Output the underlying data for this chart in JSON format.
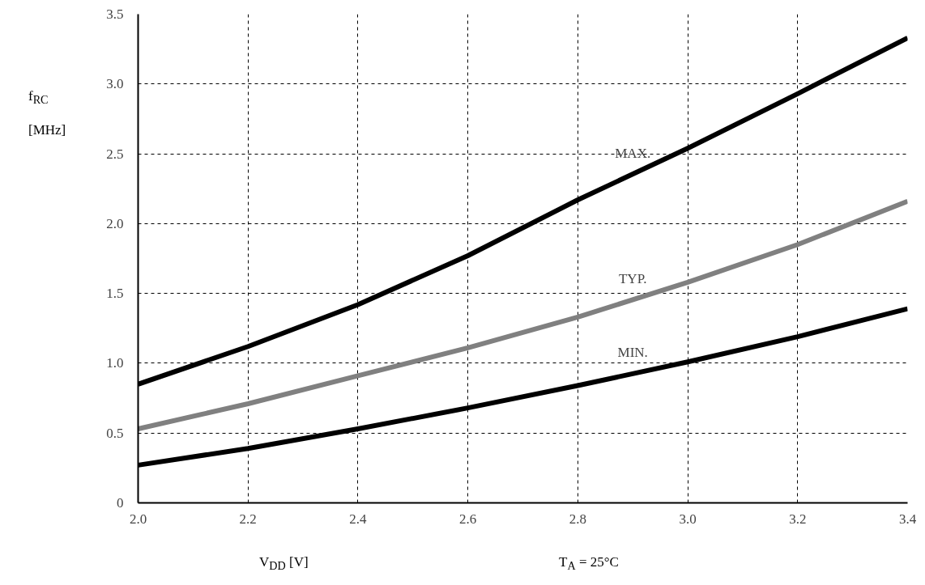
{
  "chart_data": {
    "type": "line",
    "xlabel": "V$_{DD}$ [V]",
    "ylabel": "f$_{RC}$ [MHz]",
    "x": [
      2.0,
      2.2,
      2.4,
      2.6,
      2.8,
      3.0,
      3.2,
      3.4
    ],
    "series": [
      {
        "name": "MAX.",
        "color": "#000000",
        "values": [
          0.85,
          1.12,
          1.42,
          1.77,
          2.17,
          2.54,
          2.93,
          3.33
        ]
      },
      {
        "name": "TYP.",
        "color": "#808080",
        "values": [
          0.53,
          0.71,
          0.91,
          1.11,
          1.33,
          1.58,
          1.85,
          2.16
        ]
      },
      {
        "name": "MIN.",
        "color": "#000000",
        "values": [
          0.27,
          0.39,
          0.53,
          0.68,
          0.84,
          1.01,
          1.19,
          1.39
        ]
      }
    ],
    "annotations": [
      "T$_{A}$ = 25°C"
    ],
    "xlim": [
      2.0,
      3.4
    ],
    "ylim": [
      0,
      3.5
    ],
    "xticks": [
      {
        "value": 2.0,
        "label": "2.0"
      },
      2.2,
      2.4,
      2.6,
      2.8,
      {
        "value": 3.0,
        "label": "3.0"
      },
      3.2,
      3.4
    ],
    "yticks": [
      0,
      0.5,
      {
        "value": 1.0,
        "label": "1.0"
      },
      1.5,
      {
        "value": 2.0,
        "label": "2.0"
      },
      2.5,
      {
        "value": 3.0,
        "label": "3.0"
      },
      3.5
    ],
    "grid": true,
    "marker": "none",
    "line_style": "solid"
  }
}
